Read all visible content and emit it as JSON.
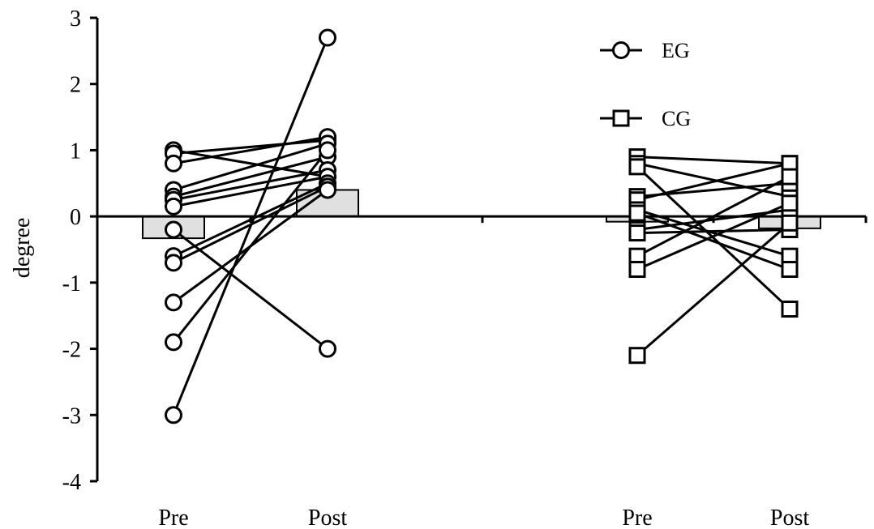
{
  "chart_data": {
    "type": "line",
    "ylabel": "degree",
    "ylim": [
      -4,
      3
    ],
    "yticks": [
      3,
      2,
      1,
      0,
      -1,
      -2,
      -3,
      -4
    ],
    "xtick_labels": [
      "Pre",
      "Post",
      "Pre",
      "Post"
    ],
    "grid": false,
    "legend_position": "top-right",
    "legend": [
      {
        "label": "EG",
        "marker": "circle"
      },
      {
        "label": "CG",
        "marker": "square"
      }
    ],
    "colors": {
      "line": "#000000",
      "marker_fill": "#ffffff",
      "bar_fill": "#e0e0e0"
    },
    "groups": [
      {
        "name": "EG",
        "marker": "circle",
        "mean_bars": {
          "Pre": -0.33,
          "Post": 0.4
        },
        "subjects": [
          {
            "pre": 1.0,
            "post": 0.6
          },
          {
            "pre": 0.95,
            "post": 1.15
          },
          {
            "pre": 0.8,
            "post": 1.2
          },
          {
            "pre": 0.4,
            "post": 1.1
          },
          {
            "pre": 0.3,
            "post": 0.9
          },
          {
            "pre": 0.25,
            "post": 0.7
          },
          {
            "pre": 0.15,
            "post": 0.6
          },
          {
            "pre": -0.2,
            "post": -2.0
          },
          {
            "pre": -0.6,
            "post": 0.5
          },
          {
            "pre": -0.7,
            "post": 0.45
          },
          {
            "pre": -1.3,
            "post": 0.4
          },
          {
            "pre": -1.9,
            "post": 1.0
          },
          {
            "pre": -3.0,
            "post": 2.7
          }
        ]
      },
      {
        "name": "CG",
        "marker": "square",
        "mean_bars": {
          "Pre": -0.08,
          "Post": -0.18
        },
        "subjects": [
          {
            "pre": 0.9,
            "post": 0.8
          },
          {
            "pre": 0.8,
            "post": 0.3
          },
          {
            "pre": 0.75,
            "post": -1.4
          },
          {
            "pre": 0.3,
            "post": 0.5
          },
          {
            "pre": 0.25,
            "post": 0.8
          },
          {
            "pre": 0.1,
            "post": -0.6
          },
          {
            "pre": 0.05,
            "post": -0.8
          },
          {
            "pre": -0.2,
            "post": 0.1
          },
          {
            "pre": -0.25,
            "post": -0.2
          },
          {
            "pre": -0.6,
            "post": 0.6
          },
          {
            "pre": -0.8,
            "post": 0.2
          },
          {
            "pre": -2.1,
            "post": -0.1
          }
        ]
      }
    ]
  }
}
